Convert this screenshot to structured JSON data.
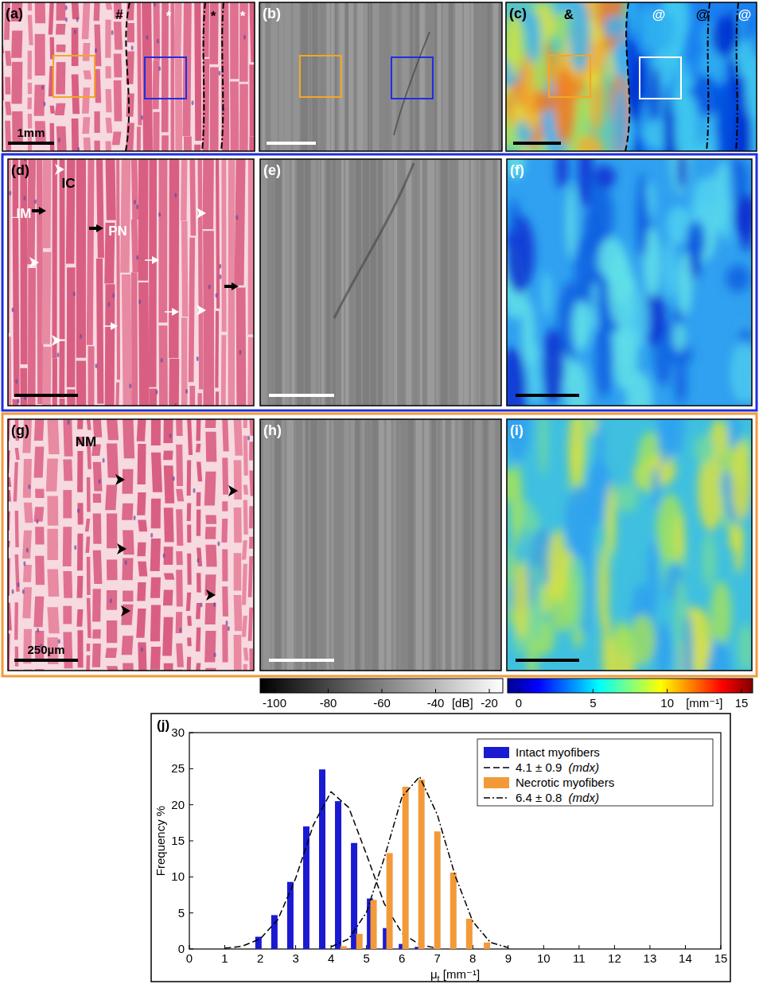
{
  "panels": [
    {
      "label": "(a)",
      "annotations": [
        "#",
        "*",
        "*",
        "*"
      ],
      "scale_bar": "1mm"
    },
    {
      "label": "(b)"
    },
    {
      "label": "(c)",
      "annotations": [
        "&",
        "@",
        "@",
        "@"
      ]
    },
    {
      "label": "(d)",
      "annotations": [
        "IC",
        "IM",
        "PN"
      ]
    },
    {
      "label": "(e)"
    },
    {
      "label": "(f)"
    },
    {
      "label": "(g)",
      "annotations": [
        "NM"
      ],
      "scale_bar": "250µm"
    },
    {
      "label": "(h)"
    },
    {
      "label": "(i)"
    }
  ],
  "colorbars": [
    {
      "range": [
        -100,
        -20
      ],
      "ticks": [
        -100,
        -80,
        -60,
        -40,
        -20
      ],
      "unit": "[dB]"
    },
    {
      "range": [
        0,
        15
      ],
      "ticks": [
        0,
        5,
        10,
        15
      ],
      "unit": "[mm⁻¹]"
    }
  ],
  "chart_data": {
    "type": "bar",
    "title": "(j)",
    "x_label": "μt [mm⁻¹]",
    "y_label": "Frequency %",
    "xlim": [
      0,
      15
    ],
    "ylim": [
      0,
      30
    ],
    "xticks": [
      0,
      1,
      2,
      3,
      4,
      5,
      6,
      7,
      8,
      9,
      10,
      11,
      12,
      13,
      14,
      15
    ],
    "yticks": [
      0,
      5,
      10,
      15,
      20,
      25,
      30
    ],
    "grid": false,
    "legend": "upper right",
    "series": [
      {
        "name": "Intact myofibers",
        "type": "bar",
        "color": "#1a1ad2",
        "x": [
          1.95,
          2.4,
          2.85,
          3.3,
          3.75,
          4.2,
          4.65,
          5.1,
          5.55,
          6.0,
          6.45
        ],
        "values": [
          1.7,
          4.7,
          9.3,
          17,
          24.9,
          20.5,
          14.7,
          7,
          2.9,
          0.7,
          0.3
        ]
      },
      {
        "name": "4.1 ± 0.9  (mdx)",
        "type": "line",
        "line_style": "dashed",
        "color": "#000000",
        "x": [
          1,
          1.5,
          2,
          2.5,
          3,
          3.5,
          4,
          4.5,
          5,
          5.5,
          6,
          6.5,
          7
        ],
        "values": [
          0.1,
          0.4,
          1.4,
          4.1,
          9.8,
          17.2,
          21.8,
          19.6,
          13.1,
          6.3,
          2.2,
          0.6,
          0.1
        ]
      },
      {
        "name": "Necrotic myofibers",
        "type": "bar",
        "color": "#f29a3a",
        "x": [
          4.35,
          4.8,
          5.2,
          5.65,
          6.1,
          6.55,
          7.0,
          7.45,
          7.9,
          8.4
        ],
        "values": [
          0.4,
          2.1,
          6.8,
          13.3,
          22.5,
          23.5,
          16.3,
          10.6,
          4.2,
          0.9
        ]
      },
      {
        "name": "6.4 ± 0.8  (mdx)",
        "type": "line",
        "line_style": "dashdot",
        "color": "#000000",
        "x": [
          4,
          4.5,
          5,
          5.5,
          6,
          6.5,
          7,
          7.5,
          8,
          8.5,
          9
        ],
        "values": [
          0.3,
          1.4,
          5.1,
          12.6,
          21.1,
          23.9,
          18.6,
          10.2,
          3.8,
          0.9,
          0.2
        ]
      }
    ]
  }
}
